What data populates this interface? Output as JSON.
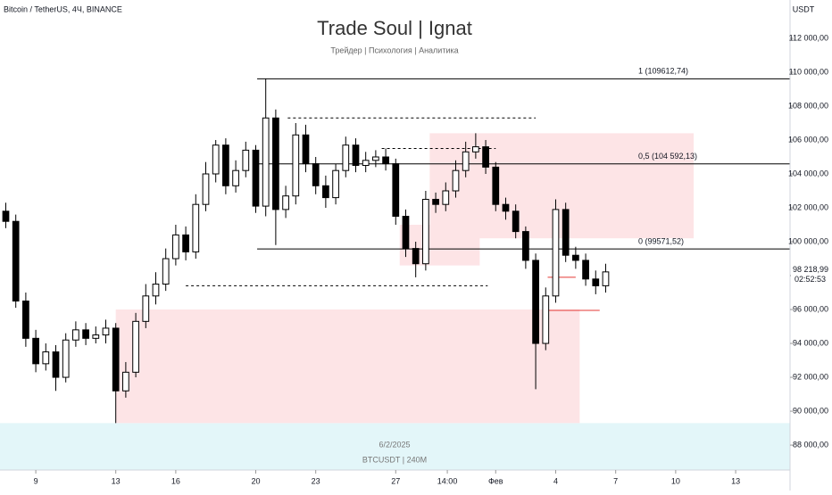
{
  "chart_data": {
    "type": "candlestick",
    "symbol_label": "Bitcoin / TetherUS, 4Ч, BINANCE",
    "title": "Trade Soul | Ignat",
    "subtitle": "Трейдер | Психология | Аналитика",
    "axis_unit": "USDT",
    "watermark": [
      "6/2/2025",
      "BTCUSDT | 240M"
    ],
    "x": [
      -1.5,
      -1,
      -0.5,
      0,
      0.5,
      1,
      1.5,
      2,
      2.5,
      3,
      3.5,
      4,
      4.5,
      5,
      5.5,
      6,
      6.5,
      7,
      7.5,
      8,
      8.5,
      9,
      9.5,
      10,
      10.5,
      11,
      11.5,
      12,
      12.5,
      13,
      13.5,
      14,
      14.5,
      15,
      15.5,
      16,
      16.5,
      17,
      17.5,
      18,
      18.5,
      19,
      19.5,
      20,
      20.5,
      21,
      21.5,
      22,
      22.5,
      23,
      23.5,
      24,
      24.5,
      25,
      25.5,
      26,
      26.5,
      27,
      27.5,
      28,
      28.5
    ],
    "open": [
      101800,
      101200,
      96500,
      94300,
      92800,
      93500,
      92000,
      94200,
      94800,
      94300,
      94500,
      94900,
      91200,
      92300,
      95300,
      96800,
      97500,
      99000,
      100400,
      99400,
      102200,
      104000,
      105700,
      103300,
      104200,
      105400,
      102100,
      107300,
      101900,
      102700,
      106300,
      104600,
      103300,
      102600,
      104200,
      105700,
      104500,
      104800,
      105000,
      104600,
      101500,
      99600,
      98700,
      102500,
      102200,
      103000,
      104200,
      105300,
      105600,
      104400,
      102200,
      101800,
      100600,
      98900,
      94000,
      96800,
      101900,
      99200,
      98900,
      97800,
      97400
    ],
    "high": [
      102300,
      101600,
      97000,
      94800,
      94000,
      93900,
      94600,
      95300,
      95200,
      95000,
      95400,
      95200,
      92900,
      95800,
      97500,
      98200,
      99600,
      101000,
      100900,
      102800,
      104700,
      106000,
      106100,
      104800,
      105900,
      105700,
      109612,
      107800,
      103300,
      107000,
      106900,
      105000,
      103900,
      104600,
      106200,
      106100,
      105300,
      105400,
      105500,
      104900,
      101900,
      100000,
      103000,
      102900,
      103500,
      104800,
      105900,
      106400,
      106000,
      104700,
      102600,
      102200,
      100900,
      99300,
      97300,
      102500,
      102300,
      99700,
      99300,
      98300,
      98700
    ],
    "low": [
      100800,
      96100,
      93800,
      92300,
      92400,
      91200,
      91700,
      93800,
      93900,
      94000,
      94000,
      89300,
      90800,
      92000,
      94900,
      96300,
      97100,
      98600,
      98900,
      99000,
      101800,
      103500,
      102800,
      102900,
      103800,
      101700,
      101500,
      99800,
      101400,
      102200,
      104100,
      102800,
      102000,
      102200,
      103800,
      104100,
      104100,
      104400,
      104200,
      101000,
      99100,
      97900,
      98300,
      101700,
      101800,
      102600,
      103800,
      104900,
      104000,
      101800,
      101300,
      100200,
      98400,
      91300,
      93600,
      96400,
      98800,
      98400,
      97400,
      96900,
      97000
    ],
    "close": [
      101200,
      96500,
      94300,
      92800,
      93500,
      92000,
      94200,
      94800,
      94300,
      94500,
      94900,
      91200,
      92300,
      95300,
      96800,
      97500,
      99000,
      100400,
      99400,
      102200,
      104000,
      105700,
      103300,
      104200,
      105400,
      102100,
      107300,
      101900,
      102700,
      106300,
      104600,
      103300,
      102600,
      104200,
      105700,
      104500,
      104800,
      105000,
      104600,
      101500,
      99600,
      98700,
      102500,
      102200,
      103000,
      104200,
      105300,
      105600,
      104400,
      102200,
      101800,
      100600,
      98900,
      94000,
      96800,
      101900,
      99200,
      98900,
      97800,
      97400,
      98218.99
    ],
    "up_color": "#ffffff",
    "down_color": "#000000",
    "wick_color": "#000000",
    "last_price": {
      "value": 98218.99,
      "label": "98 218,99"
    },
    "countdown": "02:52:53",
    "xlim": [
      -1.79,
      37.72
    ],
    "xticks": [
      {
        "value": 0,
        "label": "9"
      },
      {
        "value": 4,
        "label": "13"
      },
      {
        "value": 7,
        "label": "16"
      },
      {
        "value": 11,
        "label": "20"
      },
      {
        "value": 14,
        "label": "23"
      },
      {
        "value": 18,
        "label": "27"
      },
      {
        "value": 20.58,
        "label": "14:00"
      },
      {
        "value": 23,
        "label": "Фев"
      },
      {
        "value": 26,
        "label": "4"
      },
      {
        "value": 29,
        "label": "7"
      },
      {
        "value": 32,
        "label": "10"
      },
      {
        "value": 35,
        "label": "13"
      }
    ],
    "ylim": [
      86530,
      114260
    ],
    "yticks": [
      {
        "value": 88000,
        "label": "88 000,00"
      },
      {
        "value": 90000,
        "label": "90 000,00"
      },
      {
        "value": 92000,
        "label": "92 000,00"
      },
      {
        "value": 94000,
        "label": "94 000,00"
      },
      {
        "value": 96000,
        "label": "96 000,00"
      },
      {
        "value": 98000,
        "label": "98 000,00"
      },
      {
        "value": 100000,
        "label": "100 000,00"
      },
      {
        "value": 102000,
        "label": "102 000,00"
      },
      {
        "value": 104000,
        "label": "104 000,00"
      },
      {
        "value": 106000,
        "label": "106 000,00"
      },
      {
        "value": 108000,
        "label": "108 000,00"
      },
      {
        "value": 110000,
        "label": "110 000,00"
      },
      {
        "value": 112000,
        "label": "112 000,00"
      }
    ],
    "highlight_band": {
      "y": [
        86530,
        89300
      ],
      "color": "#e3f6f9"
    },
    "zone_color": "#fde4e6",
    "zones": [
      {
        "x": [
          4,
          27.2
        ],
        "y": [
          89300,
          96000
        ]
      },
      {
        "x": [
          19.7,
          32.9
        ],
        "y": [
          100200,
          106400
        ]
      },
      {
        "x": [
          18.2,
          22.2
        ],
        "y": [
          98600,
          101000
        ]
      }
    ],
    "levels_from": 11.07,
    "levels": [
      {
        "value": 109612.74,
        "label": "1 (109612,74)"
      },
      {
        "value": 104592.13,
        "label": "0,5 (104 592,13)"
      },
      {
        "value": 99571.52,
        "label": "0 (99571,52)"
      }
    ],
    "dashed_lines": [
      {
        "x": [
          12.6,
          25
        ],
        "y": 107300
      },
      {
        "x": [
          7.5,
          22.6
        ],
        "y": 97400
      },
      {
        "x": [
          17.3,
          23
        ],
        "y": 105500
      }
    ],
    "red_lines": [
      {
        "x": [
          25.6,
          27
        ],
        "y": 97900
      },
      {
        "x": [
          25.6,
          28.2
        ],
        "y": 95950
      }
    ]
  }
}
